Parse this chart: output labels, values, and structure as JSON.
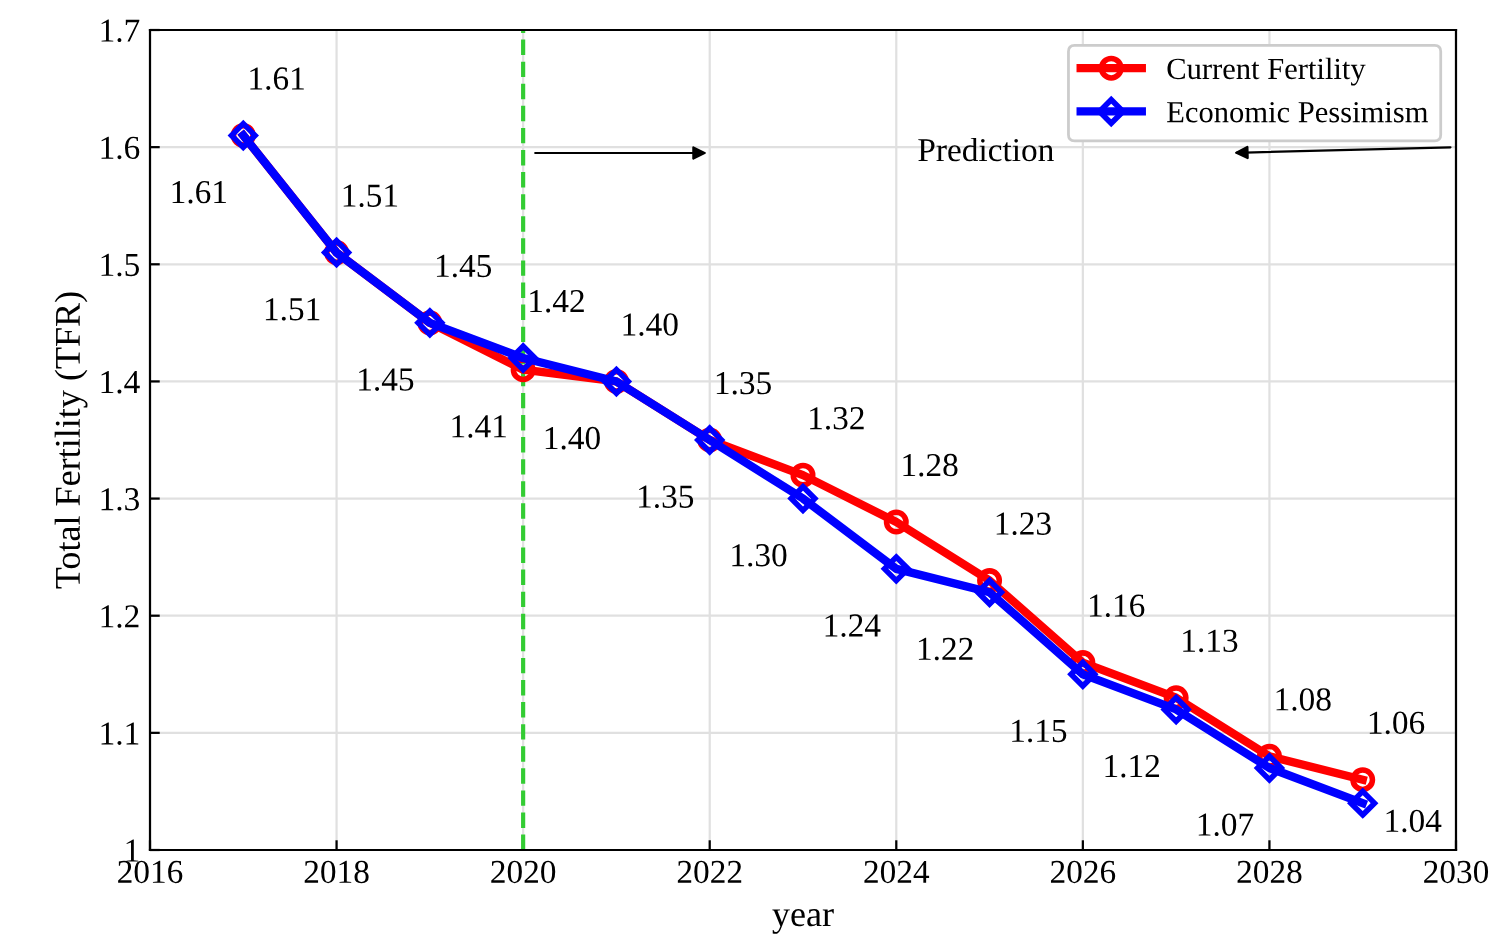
{
  "chart_data": {
    "type": "line",
    "xlabel": "year",
    "ylabel": "Total Fertility (TFR)",
    "x": [
      2017,
      2018,
      2019,
      2020,
      2021,
      2022,
      2023,
      2024,
      2025,
      2026,
      2027,
      2028,
      2029
    ],
    "series": [
      {
        "name": "Current Fertility",
        "color": "#ff0000",
        "marker": "circle",
        "values": [
          1.61,
          1.51,
          1.45,
          1.41,
          1.4,
          1.35,
          1.32,
          1.28,
          1.23,
          1.16,
          1.13,
          1.08,
          1.06
        ],
        "value_labels": [
          "1.61",
          "1.51",
          "1.45",
          "1.41",
          "1.40",
          "1.35",
          "1.32",
          "1.28",
          "1.23",
          "1.16",
          "1.13",
          "1.08",
          "1.06"
        ]
      },
      {
        "name": "Economic Pessimism",
        "color": "#0000ff",
        "marker": "diamond",
        "values": [
          1.61,
          1.51,
          1.45,
          1.42,
          1.4,
          1.35,
          1.3,
          1.24,
          1.22,
          1.15,
          1.12,
          1.07,
          1.04
        ],
        "value_labels": [
          "1.61",
          "1.51",
          "1.45",
          "1.42",
          "1.40",
          "1.35",
          "1.30",
          "1.24",
          "1.22",
          "1.15",
          "1.12",
          "1.07",
          "1.04"
        ]
      }
    ],
    "xlim": [
      2016,
      2030
    ],
    "xticks": [
      2016,
      2018,
      2020,
      2022,
      2024,
      2026,
      2028,
      2030
    ],
    "ylim": [
      1,
      1.7
    ],
    "yticks": [
      1,
      1.1,
      1.2,
      1.3,
      1.4,
      1.5,
      1.6,
      1.7
    ],
    "ref_lines": [
      {
        "axis": "x",
        "value": 2020,
        "color": "#33cc33",
        "line_style": "dashed"
      }
    ],
    "annotations": [
      "Prediction"
    ],
    "grid": true,
    "legend": "top right",
    "line_style": "solid"
  }
}
